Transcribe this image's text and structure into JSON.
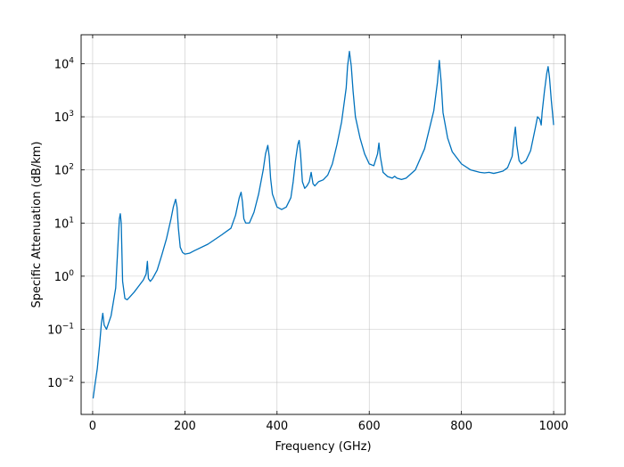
{
  "chart_data": {
    "type": "line",
    "title": "",
    "xlabel": "Frequency (GHz)",
    "ylabel": "Specific Attenuation (dB/km)",
    "xlim": [
      -25,
      1025
    ],
    "ylim": [
      0.0025,
      35000
    ],
    "yscale": "log",
    "grid": true,
    "legend": "none",
    "line_color": "#0072BD",
    "x_ticks": [
      0,
      200,
      400,
      600,
      800,
      1000
    ],
    "x_tick_labels": [
      "0",
      "200",
      "400",
      "600",
      "800",
      "1000"
    ],
    "y_ticks": [
      0.01,
      0.1,
      1,
      10,
      100,
      1000,
      10000
    ],
    "y_tick_labels": [
      {
        "base": "10",
        "exp": "−2"
      },
      {
        "base": "10",
        "exp": "−1"
      },
      {
        "base": "10",
        "exp": "0"
      },
      {
        "base": "10",
        "exp": "1"
      },
      {
        "base": "10",
        "exp": "2"
      },
      {
        "base": "10",
        "exp": "3"
      },
      {
        "base": "10",
        "exp": "4"
      }
    ],
    "series": [
      {
        "x": [
          1,
          5,
          10,
          15,
          19,
          22,
          25,
          30,
          40,
          50,
          55,
          58,
          60,
          62,
          65,
          70,
          75,
          80,
          90,
          100,
          110,
          116,
          118.75,
          121,
          125,
          130,
          140,
          150,
          160,
          170,
          175,
          180,
          183,
          186,
          190,
          195,
          200,
          210,
          220,
          250,
          280,
          300,
          310,
          318,
          322,
          325,
          328,
          332,
          340,
          350,
          360,
          370,
          375,
          380,
          383,
          386,
          390,
          400,
          410,
          420,
          430,
          435,
          440,
          445,
          448,
          451,
          455,
          460,
          465,
          470,
          474,
          478,
          482,
          490,
          500,
          510,
          520,
          530,
          540,
          550,
          553,
          557,
          561,
          565,
          570,
          580,
          590,
          600,
          610,
          618,
          621,
          624,
          630,
          640,
          650,
          655,
          660,
          670,
          680,
          700,
          720,
          740,
          748,
          752,
          756,
          760,
          770,
          780,
          800,
          820,
          840,
          850,
          860,
          870,
          880,
          890,
          900,
          910,
          914,
          917,
          920,
          925,
          930,
          940,
          950,
          960,
          965,
          970,
          973,
          975,
          980,
          985,
          988,
          991,
          995,
          1000
        ],
        "y": [
          0.005,
          0.009,
          0.018,
          0.05,
          0.13,
          0.2,
          0.12,
          0.1,
          0.18,
          0.6,
          4,
          12,
          15,
          10,
          0.8,
          0.38,
          0.36,
          0.4,
          0.5,
          0.65,
          0.85,
          1.1,
          1.9,
          0.9,
          0.8,
          0.9,
          1.3,
          2.5,
          5,
          12,
          20,
          28,
          20,
          8,
          3.5,
          2.8,
          2.6,
          2.7,
          3,
          4,
          6,
          8,
          14,
          30,
          38,
          25,
          12,
          10,
          10,
          16,
          35,
          100,
          200,
          290,
          180,
          70,
          35,
          20,
          18,
          20,
          30,
          60,
          150,
          300,
          360,
          200,
          60,
          45,
          50,
          60,
          90,
          55,
          50,
          60,
          65,
          80,
          130,
          300,
          800,
          3500,
          9000,
          17000,
          9000,
          3000,
          1000,
          400,
          200,
          130,
          120,
          200,
          320,
          180,
          90,
          75,
          70,
          76,
          70,
          66,
          70,
          100,
          250,
          1300,
          4500,
          11500,
          4500,
          1200,
          400,
          220,
          130,
          100,
          90,
          88,
          90,
          86,
          90,
          95,
          110,
          180,
          400,
          640,
          300,
          150,
          130,
          150,
          230,
          600,
          1000,
          900,
          700,
          1200,
          3000,
          6500,
          8800,
          5500,
          2000,
          700
        ]
      }
    ]
  }
}
